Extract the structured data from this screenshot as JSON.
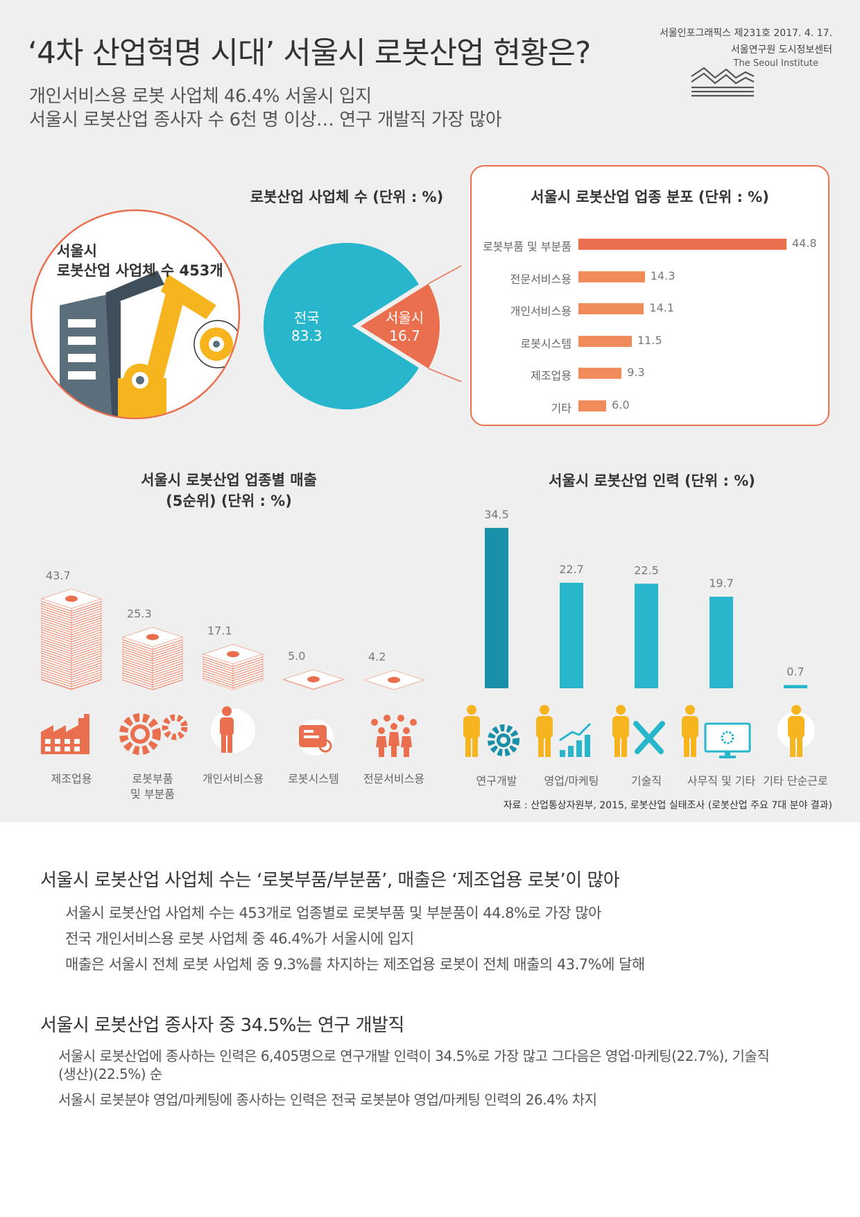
{
  "header": {
    "title": "‘4차 산업혁명 시대’ 서울시 로봇산업 현황은?",
    "subtitle_1": "개인서비스용 로봇 사업체 46.4% 서울시 입지",
    "subtitle_2": "서울시 로봇산업 종사자 수 6천 명 이상… 연구 개발직 가장 많아",
    "issue": "서울인포그래픽스 제231호 2017. 4. 17.",
    "org": "서울연구원 도시정보센터",
    "org_en": "The Seoul Institute"
  },
  "circle": {
    "line1": "서울시",
    "line2": "로봇산업 사업체 수 453개"
  },
  "colors": {
    "orange": "#ea6f4f",
    "teal": "#27b6cc",
    "dark_teal": "#1990a8",
    "bar_orange": "#f08c5c",
    "yellow": "#f6b51e",
    "gray_bg": "#efefef"
  },
  "chart_data": [
    {
      "type": "pie",
      "title": "로봇산업 사업체 수 (단위 : %)",
      "labels": [
        "전국",
        "서울시"
      ],
      "values": [
        83.3,
        16.7
      ],
      "value_labels": [
        "83.3",
        "16.7"
      ]
    },
    {
      "type": "bar",
      "orientation": "horizontal",
      "title": "서울시 로봇산업 업종 분포 (단위 : %)",
      "categories": [
        "로봇부품 및 부분품",
        "전문서비스용",
        "개인서비스용",
        "로봇시스템",
        "제조업용",
        "기타"
      ],
      "values": [
        44.8,
        14.3,
        14.1,
        11.5,
        9.3,
        6.0
      ],
      "value_labels": [
        "44.8",
        "14.3",
        "14.1",
        "11.5",
        "9.3",
        "6.0"
      ]
    },
    {
      "type": "bar",
      "title_1": "서울시 로봇산업 업종별 매출",
      "title_2": "(5순위) (단위 : %)",
      "categories": [
        "제조업용",
        "로봇부품 및 부분품",
        "개인서비스용",
        "로봇시스템",
        "전문서비스용"
      ],
      "category_lines": [
        [
          "제조업용"
        ],
        [
          "로봇부품",
          "및 부분품"
        ],
        [
          "개인서비스용"
        ],
        [
          "로봇시스템"
        ],
        [
          "전문서비스용"
        ]
      ],
      "values": [
        43.7,
        25.3,
        17.1,
        5.0,
        4.2
      ],
      "value_labels": [
        "43.7",
        "25.3",
        "17.1",
        "5.0",
        "4.2"
      ]
    },
    {
      "type": "bar",
      "title": "서울시 로봇산업 인력 (단위 : %)",
      "categories": [
        "연구개발",
        "영업/마케팅",
        "기술직",
        "사무직 및 기타",
        "기타 단순근로"
      ],
      "values": [
        34.5,
        22.7,
        22.5,
        19.7,
        0.7
      ],
      "value_labels": [
        "34.5",
        "22.7",
        "22.5",
        "19.7",
        "0.7"
      ]
    }
  ],
  "source": "자료 : 산업통상자원부, 2015, 로봇산업 실태조사 (로봇산업 주요 7대 분야 결과)",
  "summary": {
    "h1": "서울시 로봇산업 사업체 수는 ‘로봇부품/부분품’, 매출은 ‘제조업용 로봇’이 많아",
    "p1": "서울시 로봇산업 사업체 수는 453개로 업종별로 로봇부품 및 부분품이 44.8%로 가장 많아",
    "p2": "전국 개인서비스용 로봇 사업체 중 46.4%가 서울시에 입지",
    "p3": "매출은 서울시 전체 로봇 사업체 중 9.3%를 차지하는 제조업용 로봇이 전체 매출의 43.7%에 달해",
    "h2": "서울시 로봇산업 종사자 중 34.5%는 연구 개발직",
    "p4a": "서울시 로봇산업에 종사하는 인력은 6,405명으로 연구개발 인력이 34.5%로 가장 많고 그다음은 영업·마케팅(22.7%), 기술직",
    "p4b": "(생산)(22.5%) 순",
    "p5": "서울시 로봇분야 영업/마케팅에 종사하는 인력은 전국 로봇분야 영업/마케팅 인력의 26.4% 차지"
  }
}
